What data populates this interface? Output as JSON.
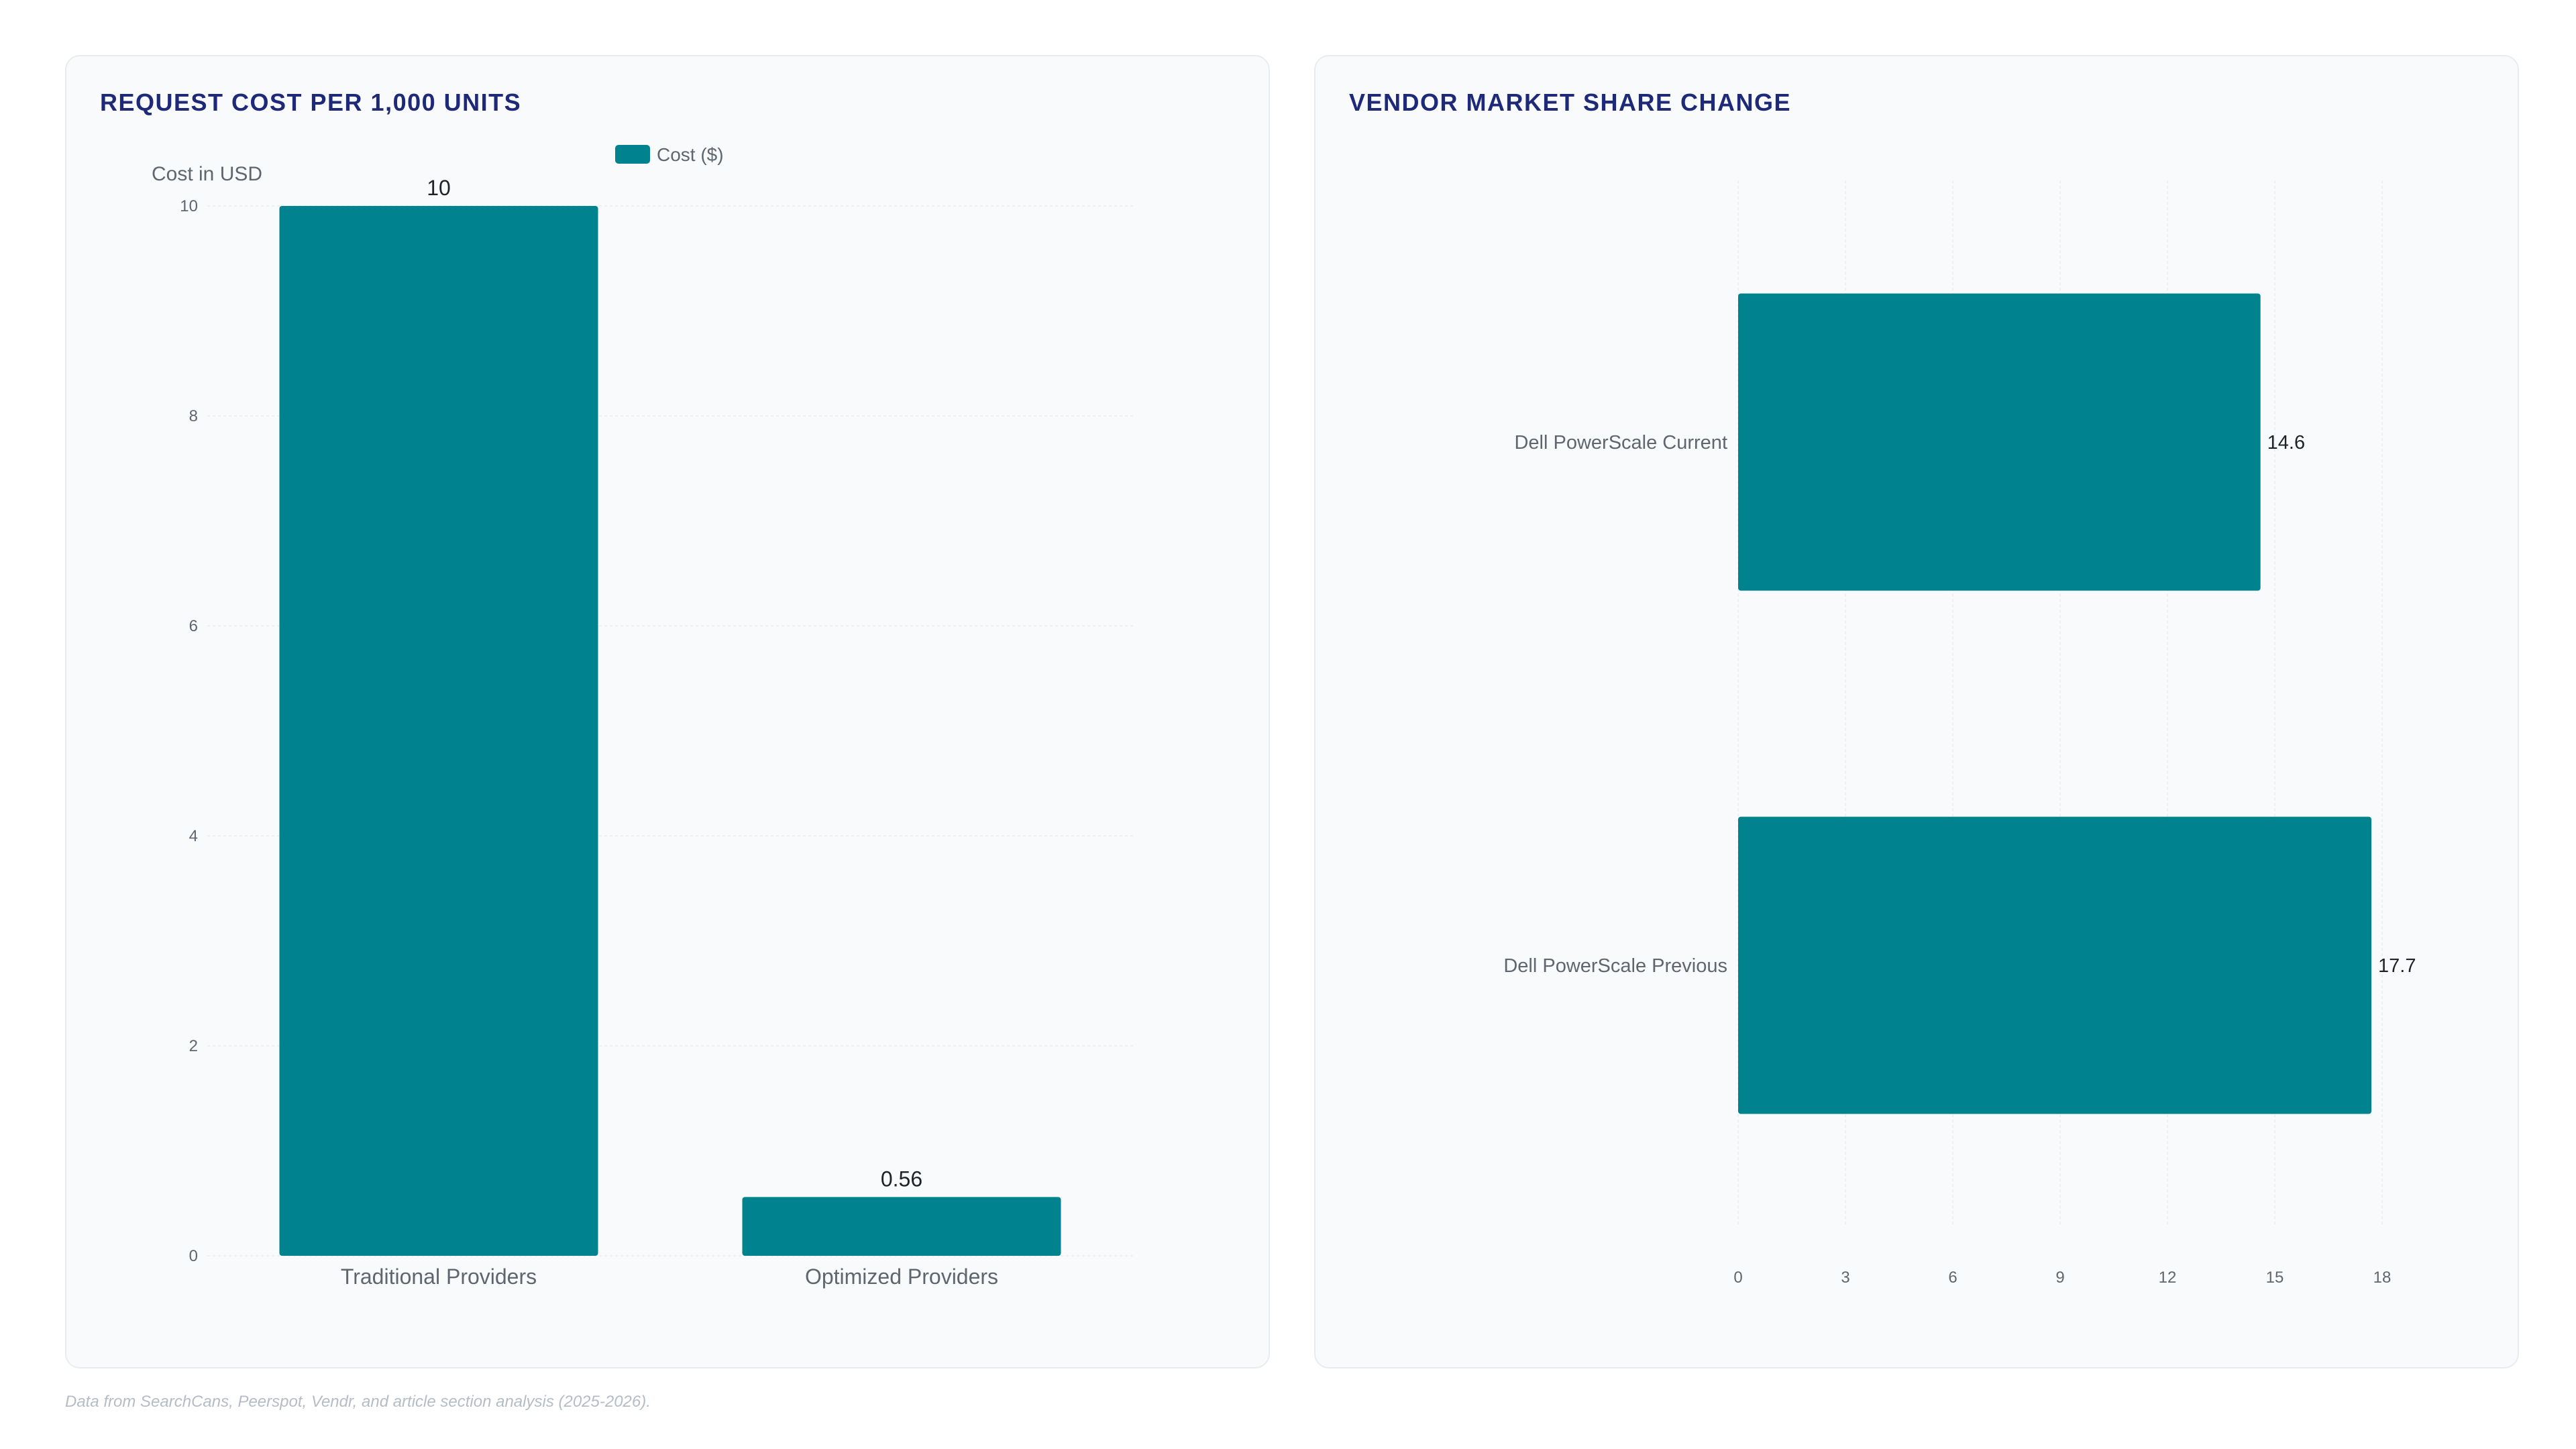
{
  "colors": {
    "bar": "#00838f",
    "title": "#1e2a78",
    "tick_text": "#5f6670",
    "value_text": "#1f2329",
    "grid": "#eceff3"
  },
  "footnote": "Data from SearchCans, Peerspot, Vendr, and article section analysis (2025-2026).",
  "chart_data": [
    {
      "type": "bar",
      "orientation": "vertical",
      "title": "REQUEST COST PER 1,000 UNITS",
      "ylabel": "Cost in USD",
      "xlabel": "",
      "categories": [
        "Traditional Providers",
        "Optimized Providers"
      ],
      "series": [
        {
          "name": "Cost ($)",
          "values": [
            10,
            0.56
          ]
        }
      ],
      "value_labels": [
        "10",
        "0.56"
      ],
      "ylim": [
        0,
        10
      ],
      "yticks": [
        0,
        2,
        4,
        6,
        8,
        10
      ],
      "grid": true,
      "legend": "top-center"
    },
    {
      "type": "bar",
      "orientation": "horizontal",
      "title": "VENDOR MARKET SHARE CHANGE",
      "xlabel": "",
      "ylabel": "",
      "categories": [
        "Dell PowerScale Current",
        "Dell PowerScale Previous"
      ],
      "series": [
        {
          "values": [
            14.6,
            17.7
          ]
        }
      ],
      "value_labels": [
        "14.6",
        "17.7"
      ],
      "xlim": [
        0,
        18
      ],
      "xticks": [
        0,
        3,
        6,
        9,
        12,
        15,
        18
      ],
      "grid": true,
      "legend": "none"
    }
  ]
}
